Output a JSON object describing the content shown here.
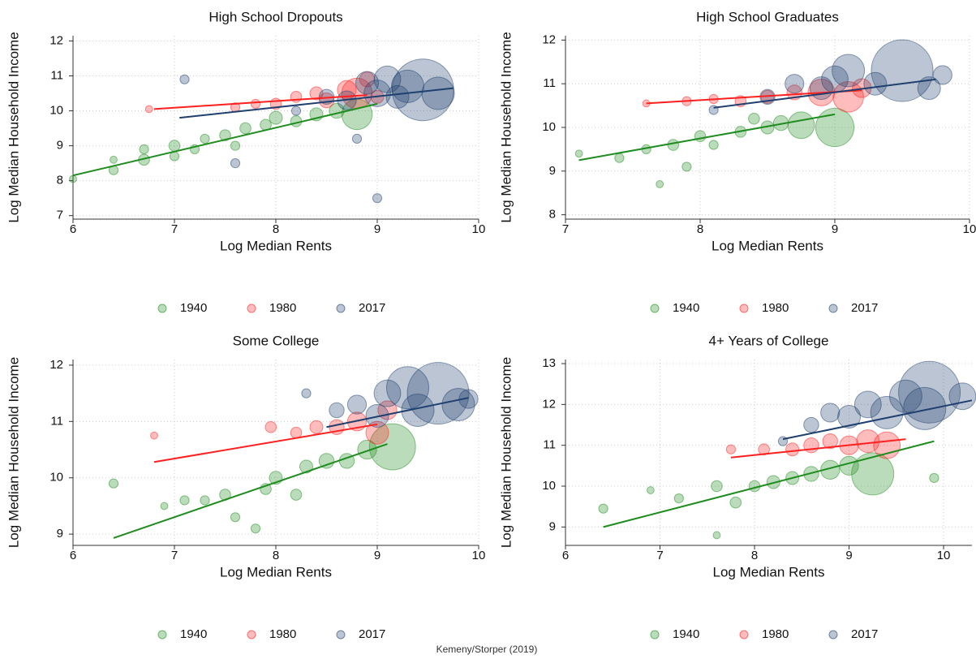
{
  "chart_data": [
    {
      "type": "scatter",
      "title": "High School Dropouts",
      "xlabel": "Log Median Rents",
      "ylabel": "Log Median Household Income",
      "xlim": [
        6,
        10
      ],
      "ylim": [
        6.9,
        12.15
      ],
      "xticks": [
        6,
        7,
        8,
        9,
        10
      ],
      "yticks": [
        7,
        8,
        9,
        10,
        11,
        12
      ],
      "grid": true,
      "series": [
        {
          "name": "1940",
          "color": "#1e8c1e",
          "x": [
            6.0,
            6.4,
            6.4,
            6.7,
            6.7,
            7.0,
            7.0,
            7.2,
            7.3,
            7.5,
            7.6,
            7.7,
            7.9,
            8.0,
            8.2,
            8.4,
            8.6,
            8.8
          ],
          "values": [
            8.05,
            8.3,
            8.6,
            8.6,
            8.9,
            8.7,
            9.0,
            8.9,
            9.2,
            9.3,
            9.0,
            9.5,
            9.6,
            9.8,
            9.7,
            9.9,
            10.0,
            9.9
          ],
          "sizes": [
            2,
            3,
            2,
            4,
            3,
            3,
            4,
            3,
            3,
            4,
            3,
            4,
            4,
            5,
            4,
            5,
            6,
            14
          ],
          "fit_x": [
            6.0,
            9.0
          ],
          "fit_y": [
            8.15,
            10.2
          ]
        },
        {
          "name": "1980",
          "color": "#ff2020",
          "x": [
            6.75,
            7.6,
            7.8,
            8.0,
            8.2,
            8.4,
            8.5,
            8.7,
            8.8,
            8.9,
            9.0
          ],
          "values": [
            10.05,
            10.1,
            10.2,
            10.2,
            10.4,
            10.5,
            10.3,
            10.6,
            10.5,
            10.9,
            10.4
          ],
          "sizes": [
            2,
            3,
            3,
            4,
            4,
            5,
            6,
            8,
            14,
            6,
            5
          ],
          "fit_x": [
            6.8,
            8.9
          ],
          "fit_y": [
            10.05,
            10.45
          ]
        },
        {
          "name": "2017",
          "color": "#1f3f6e",
          "x": [
            7.1,
            7.6,
            8.2,
            8.5,
            8.7,
            8.8,
            8.9,
            9.0,
            9.1,
            9.0,
            9.2,
            9.3,
            9.45,
            9.6
          ],
          "values": [
            10.9,
            8.5,
            10.0,
            10.4,
            10.3,
            9.2,
            10.8,
            10.5,
            10.9,
            7.5,
            10.4,
            10.7,
            10.6,
            10.5
          ],
          "sizes": [
            3,
            3,
            3,
            6,
            8,
            3,
            10,
            12,
            12,
            3,
            10,
            15,
            30,
            15
          ],
          "fit_x": [
            7.05,
            9.75
          ],
          "fit_y": [
            9.8,
            10.65
          ]
        }
      ]
    },
    {
      "type": "scatter",
      "title": "High School Graduates",
      "xlabel": "Log Median Rents",
      "ylabel": "Log Median Household Income",
      "xlim": [
        7,
        10
      ],
      "ylim": [
        7.9,
        12.1
      ],
      "xticks": [
        7,
        8,
        9,
        10
      ],
      "yticks": [
        8,
        9,
        10,
        11,
        12
      ],
      "grid": true,
      "series": [
        {
          "name": "1940",
          "color": "#1e8c1e",
          "x": [
            7.1,
            7.4,
            7.6,
            7.7,
            7.8,
            8.0,
            8.1,
            8.3,
            8.5,
            8.6,
            8.75,
            9.0,
            8.4,
            7.9
          ],
          "values": [
            9.4,
            9.3,
            9.5,
            8.7,
            9.6,
            9.8,
            9.6,
            9.9,
            10.0,
            10.1,
            10.05,
            10.0,
            10.2,
            9.1
          ],
          "sizes": [
            2,
            3,
            3,
            2,
            4,
            4,
            3,
            4,
            5,
            6,
            12,
            18,
            4,
            3
          ],
          "fit_x": [
            7.1,
            9.0
          ],
          "fit_y": [
            9.25,
            10.3
          ]
        },
        {
          "name": "1980",
          "color": "#ff2020",
          "x": [
            7.6,
            7.9,
            8.1,
            8.3,
            8.5,
            8.7,
            8.9,
            9.1,
            9.2
          ],
          "values": [
            10.55,
            10.6,
            10.65,
            10.6,
            10.7,
            10.8,
            10.8,
            10.7,
            10.9
          ],
          "sizes": [
            2,
            3,
            3,
            4,
            5,
            6,
            12,
            14,
            8
          ],
          "fit_x": [
            7.6,
            9.2
          ],
          "fit_y": [
            10.55,
            10.85
          ]
        },
        {
          "name": "2017",
          "color": "#1f3f6e",
          "x": [
            8.1,
            8.5,
            8.7,
            8.9,
            9.0,
            9.1,
            9.3,
            9.5,
            9.7,
            9.8
          ],
          "values": [
            10.4,
            10.7,
            11.0,
            10.9,
            11.1,
            11.3,
            11.0,
            11.3,
            10.9,
            11.2
          ],
          "sizes": [
            3,
            6,
            8,
            10,
            12,
            15,
            10,
            30,
            10,
            8
          ],
          "fit_x": [
            8.1,
            9.75
          ],
          "fit_y": [
            10.45,
            11.1
          ]
        }
      ]
    },
    {
      "type": "scatter",
      "title": "Some College",
      "xlabel": "Log Median Rents",
      "ylabel": "Log Median Household Income",
      "xlim": [
        6,
        10
      ],
      "ylim": [
        8.8,
        12.1
      ],
      "xticks": [
        6,
        7,
        8,
        9,
        10
      ],
      "yticks": [
        9,
        10,
        11,
        12
      ],
      "grid": true,
      "series": [
        {
          "name": "1940",
          "color": "#1e8c1e",
          "x": [
            6.4,
            6.9,
            7.1,
            7.3,
            7.5,
            7.6,
            7.8,
            7.9,
            8.0,
            8.2,
            8.3,
            8.5,
            8.7,
            8.9,
            9.15
          ],
          "values": [
            9.9,
            9.5,
            9.6,
            9.6,
            9.7,
            9.3,
            9.1,
            9.8,
            10.0,
            9.7,
            10.2,
            10.3,
            10.3,
            10.5,
            10.55
          ],
          "sizes": [
            3,
            2,
            3,
            3,
            4,
            3,
            3,
            4,
            5,
            4,
            5,
            6,
            6,
            8,
            22
          ],
          "fit_x": [
            6.4,
            9.1
          ],
          "fit_y": [
            8.93,
            10.6
          ]
        },
        {
          "name": "1980",
          "color": "#ff2020",
          "x": [
            6.8,
            7.95,
            8.2,
            8.4,
            8.6,
            8.8,
            9.0,
            9.1
          ],
          "values": [
            10.75,
            10.9,
            10.8,
            10.9,
            10.9,
            11.0,
            10.8,
            11.2
          ],
          "sizes": [
            2,
            4,
            4,
            5,
            6,
            8,
            10,
            8
          ],
          "fit_x": [
            6.8,
            9.0
          ],
          "fit_y": [
            10.28,
            10.95
          ]
        },
        {
          "name": "2017",
          "color": "#1f3f6e",
          "x": [
            8.3,
            8.6,
            8.8,
            9.0,
            9.1,
            9.3,
            9.4,
            9.6,
            9.8,
            9.9
          ],
          "values": [
            11.5,
            11.2,
            11.3,
            11.1,
            11.5,
            11.6,
            11.2,
            11.5,
            11.3,
            11.4
          ],
          "sizes": [
            3,
            6,
            8,
            10,
            12,
            20,
            15,
            30,
            15,
            8
          ],
          "fit_x": [
            8.5,
            9.9
          ],
          "fit_y": [
            10.9,
            11.42
          ]
        }
      ]
    },
    {
      "type": "scatter",
      "title": "4+ Years of College",
      "xlabel": "Log Median Rents",
      "ylabel": "Log Median Household Income",
      "xlim": [
        6,
        10.3
      ],
      "ylim": [
        8.55,
        13.1
      ],
      "xticks": [
        6,
        7,
        8,
        9,
        10
      ],
      "yticks": [
        9,
        10,
        11,
        12,
        13
      ],
      "grid": true,
      "series": [
        {
          "name": "1940",
          "color": "#1e8c1e",
          "x": [
            6.4,
            6.9,
            7.2,
            7.6,
            7.6,
            7.8,
            8.0,
            8.2,
            8.4,
            8.6,
            8.8,
            9.0,
            9.25,
            9.9
          ],
          "values": [
            9.45,
            9.9,
            9.7,
            8.8,
            10.0,
            9.6,
            10.0,
            10.1,
            10.2,
            10.3,
            10.4,
            10.5,
            10.3,
            10.2
          ],
          "sizes": [
            3,
            2,
            3,
            2,
            4,
            4,
            4,
            5,
            5,
            6,
            8,
            8,
            20,
            3
          ],
          "fit_x": [
            6.4,
            9.9
          ],
          "fit_y": [
            9.0,
            11.1
          ]
        },
        {
          "name": "1980",
          "color": "#ff2020",
          "x": [
            7.75,
            8.1,
            8.4,
            8.6,
            8.8,
            9.0,
            9.2,
            9.4
          ],
          "values": [
            10.9,
            10.9,
            10.9,
            11.0,
            11.1,
            11.0,
            11.1,
            11.0
          ],
          "sizes": [
            3,
            4,
            5,
            6,
            6,
            8,
            10,
            12
          ],
          "fit_x": [
            7.75,
            9.6
          ],
          "fit_y": [
            10.7,
            11.15
          ]
        },
        {
          "name": "2017",
          "color": "#1f3f6e",
          "x": [
            8.3,
            8.6,
            8.8,
            9.0,
            9.2,
            9.4,
            9.6,
            9.8,
            9.85,
            10.2
          ],
          "values": [
            11.1,
            11.5,
            11.8,
            11.7,
            12.0,
            11.8,
            12.2,
            11.9,
            12.3,
            12.2
          ],
          "sizes": [
            3,
            6,
            8,
            10,
            12,
            15,
            15,
            20,
            30,
            12
          ],
          "fit_x": [
            8.3,
            10.3
          ],
          "fit_y": [
            11.15,
            12.1
          ]
        }
      ]
    }
  ],
  "source": "Kemeny/Storper (2019)"
}
